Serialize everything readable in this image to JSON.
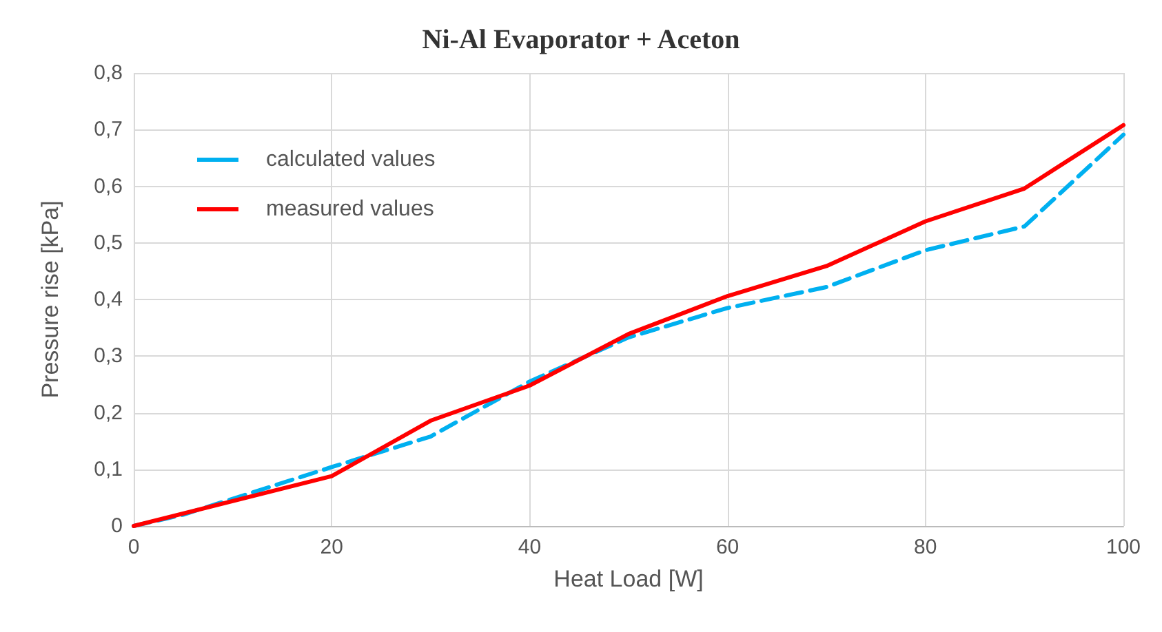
{
  "chart_data": {
    "type": "line",
    "title": "Ni-Al Evaporator + Aceton",
    "xlabel": "Heat Load [W]",
    "ylabel": "Pressure rise [kPa]",
    "series": [
      {
        "name": "calculated values",
        "color": "#00b0f0",
        "line_style": "dashed",
        "x": [
          0,
          5,
          20,
          30,
          40,
          50,
          60,
          70,
          80,
          90,
          100
        ],
        "values": [
          0,
          0.02,
          0.104,
          0.158,
          0.255,
          0.333,
          0.385,
          0.422,
          0.487,
          0.529,
          0.691
        ]
      },
      {
        "name": "measured values",
        "color": "#ff0000",
        "line_style": "solid",
        "x": [
          0,
          20,
          30,
          40,
          50,
          60,
          70,
          80,
          90,
          100
        ],
        "values": [
          0,
          0.088,
          0.186,
          0.248,
          0.339,
          0.406,
          0.459,
          0.538,
          0.596,
          0.708
        ]
      }
    ],
    "xlim": [
      0,
      100
    ],
    "xticks": [
      0,
      20,
      40,
      60,
      80,
      100
    ],
    "ylim": [
      0,
      0.8
    ],
    "yticks": [
      0,
      {
        "value": 0.1,
        "label": "0,1"
      },
      {
        "value": 0.2,
        "label": "0,2"
      },
      {
        "value": 0.3,
        "label": "0,3"
      },
      {
        "value": 0.4,
        "label": "0,4"
      },
      {
        "value": 0.5,
        "label": "0,5"
      },
      {
        "value": 0.6,
        "label": "0,6"
      },
      {
        "value": 0.7,
        "label": "0,7"
      },
      {
        "value": 0.8,
        "label": "0,8"
      }
    ],
    "grid": true,
    "legend": "top left",
    "marker": "none"
  }
}
